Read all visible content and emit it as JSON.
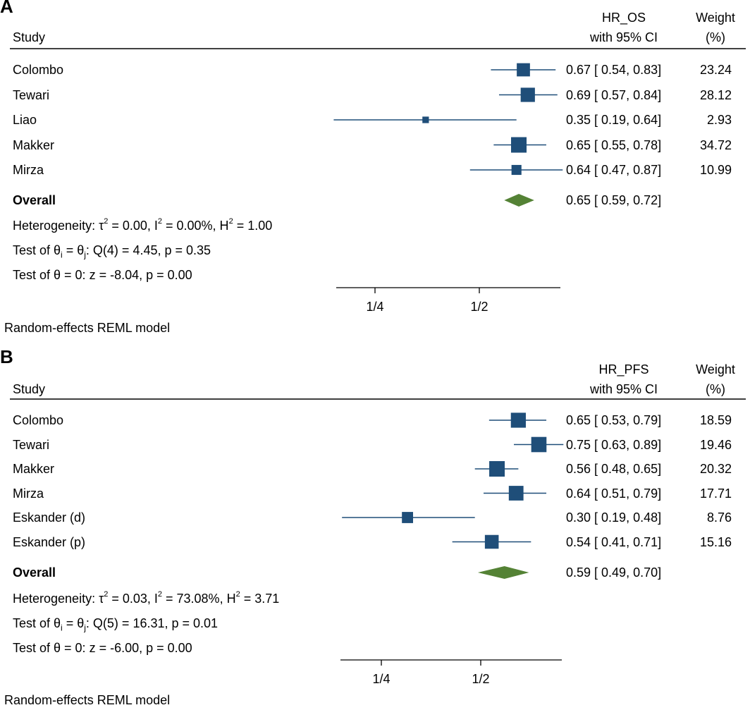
{
  "chart_data": [
    {
      "type": "forest",
      "panel_label": "A",
      "col_study": "Study",
      "col_effect": [
        "HR_OS",
        "with 95% CI"
      ],
      "col_weight": [
        "Weight",
        "(%)"
      ],
      "studies": [
        {
          "name": "Colombo",
          "hr": 0.67,
          "lo": 0.54,
          "hi": 0.83,
          "ci_text": "0.67 [ 0.54,  0.83]",
          "weight": 23.24,
          "weight_text": "23.24"
        },
        {
          "name": "Tewari",
          "hr": 0.69,
          "lo": 0.57,
          "hi": 0.84,
          "ci_text": "0.69 [ 0.57,  0.84]",
          "weight": 28.12,
          "weight_text": "28.12"
        },
        {
          "name": "Liao",
          "hr": 0.35,
          "lo": 0.19,
          "hi": 0.64,
          "ci_text": "0.35 [ 0.19,  0.64]",
          "weight": 2.93,
          "weight_text": "2.93"
        },
        {
          "name": "Makker",
          "hr": 0.65,
          "lo": 0.55,
          "hi": 0.78,
          "ci_text": "0.65 [ 0.55,  0.78]",
          "weight": 34.72,
          "weight_text": "34.72"
        },
        {
          "name": "Mirza",
          "hr": 0.64,
          "lo": 0.47,
          "hi": 0.87,
          "ci_text": "0.64 [ 0.47,  0.87]",
          "weight": 10.99,
          "weight_text": "10.99"
        }
      ],
      "overall": {
        "label": "Overall",
        "hr": 0.65,
        "lo": 0.59,
        "hi": 0.72,
        "ci_text": "0.65 [ 0.59,  0.72]"
      },
      "heterogeneity": {
        "prefix": "Heterogeneity: τ",
        "tau2": " = 0.00, I",
        "i2": " = 0.00%, H",
        "h2": " = 1.00"
      },
      "test_equal": {
        "prefix": "Test of θ",
        "mid": " = θ",
        "suffix": ": Q(4) = 4.45, p = 0.35"
      },
      "test_zero": "Test of θ = 0: z = -8.04, p = 0.00",
      "x_ticks": [
        {
          "value": 0.25,
          "label": "1/4"
        },
        {
          "value": 0.5,
          "label": "1/2"
        }
      ],
      "x_scale": "log2",
      "footnote": "Random-effects REML model"
    },
    {
      "type": "forest",
      "panel_label": "B",
      "col_study": "Study",
      "col_effect": [
        "HR_PFS",
        "with 95% CI"
      ],
      "col_weight": [
        "Weight",
        "(%)"
      ],
      "studies": [
        {
          "name": "Colombo",
          "hr": 0.65,
          "lo": 0.53,
          "hi": 0.79,
          "ci_text": "0.65 [ 0.53,  0.79]",
          "weight": 18.59,
          "weight_text": "18.59"
        },
        {
          "name": "Tewari",
          "hr": 0.75,
          "lo": 0.63,
          "hi": 0.89,
          "ci_text": "0.75 [ 0.63,  0.89]",
          "weight": 19.46,
          "weight_text": "19.46"
        },
        {
          "name": "Makker",
          "hr": 0.56,
          "lo": 0.48,
          "hi": 0.65,
          "ci_text": "0.56 [ 0.48,  0.65]",
          "weight": 20.32,
          "weight_text": "20.32"
        },
        {
          "name": "Mirza",
          "hr": 0.64,
          "lo": 0.51,
          "hi": 0.79,
          "ci_text": "0.64 [ 0.51,  0.79]",
          "weight": 17.71,
          "weight_text": "17.71"
        },
        {
          "name": "Eskander (d)",
          "hr": 0.3,
          "lo": 0.19,
          "hi": 0.48,
          "ci_text": "0.30 [ 0.19,  0.48]",
          "weight": 8.76,
          "weight_text": "8.76"
        },
        {
          "name": "Eskander (p)",
          "hr": 0.54,
          "lo": 0.41,
          "hi": 0.71,
          "ci_text": "0.54 [ 0.41,  0.71]",
          "weight": 15.16,
          "weight_text": "15.16"
        }
      ],
      "overall": {
        "label": "Overall",
        "hr": 0.59,
        "lo": 0.49,
        "hi": 0.7,
        "ci_text": "0.59 [ 0.49,  0.70]"
      },
      "heterogeneity": {
        "prefix": "Heterogeneity: τ",
        "tau2": " = 0.03, I",
        "i2": " = 73.08%, H",
        "h2": " = 3.71"
      },
      "test_equal": {
        "prefix": "Test of θ",
        "mid": " = θ",
        "suffix": ": Q(5) = 16.31, p = 0.01"
      },
      "test_zero": "Test of θ = 0: z = -6.00, p = 0.00",
      "x_ticks": [
        {
          "value": 0.25,
          "label": "1/4"
        },
        {
          "value": 0.5,
          "label": "1/2"
        }
      ],
      "x_scale": "log2",
      "footnote": "Random-effects REML model"
    }
  ],
  "sup2": "2",
  "sub_i": "i",
  "sub_j": "j",
  "colors": {
    "box": "#1f4e79",
    "ci": "#1f4e79",
    "diamond": "#548235",
    "rule": "#000000"
  }
}
